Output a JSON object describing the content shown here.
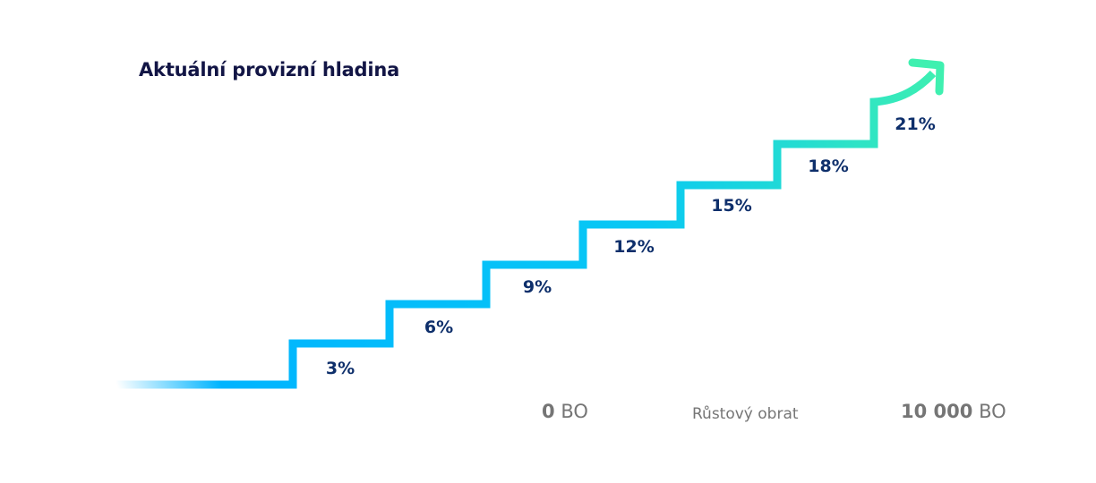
{
  "title": "Aktuální provizní hladina",
  "levels": [
    "3%",
    "6%",
    "9%",
    "12%",
    "15%",
    "18%",
    "21%"
  ],
  "axis": {
    "start_value": "0",
    "start_unit": "BO",
    "middle_label": "Růstový obrat",
    "end_value": "10 000",
    "end_unit": "BO"
  },
  "colors": {
    "gradient_start": "#00b4ff",
    "gradient_end": "#3ff0b0",
    "text_dark": "#0e2f6b",
    "axis_text": "#757575"
  }
}
